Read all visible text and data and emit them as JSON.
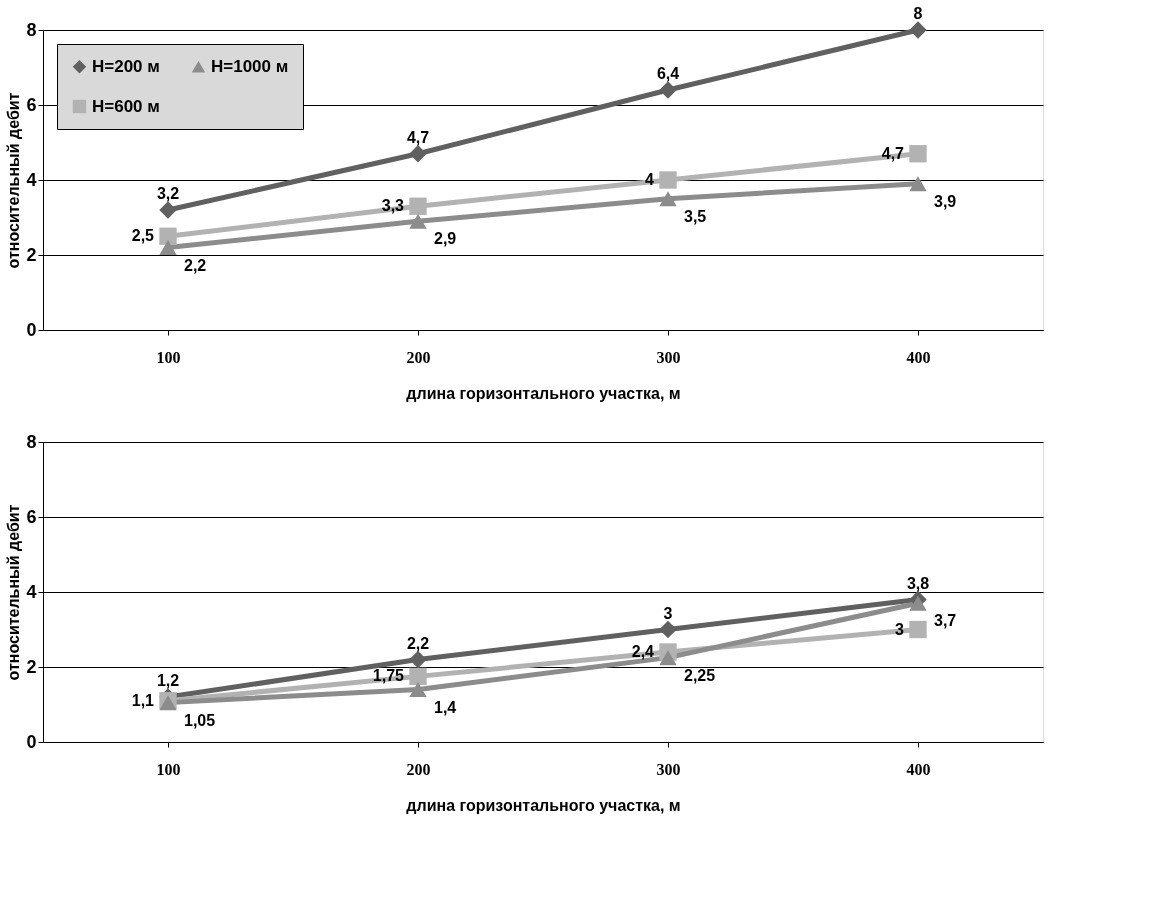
{
  "chart_data": [
    {
      "type": "line",
      "xlabel": "длина горизонтального участка, м",
      "ylabel": "относительный дебит",
      "categories": [
        "100",
        "200",
        "300",
        "400"
      ],
      "ylim": [
        0,
        8
      ],
      "yticks": [
        0,
        2,
        4,
        6,
        8
      ],
      "grid": "y",
      "legend": "top left",
      "series": [
        {
          "name": "H=200 м",
          "color": "#606060",
          "marker": "diamond",
          "values": [
            3.2,
            4.7,
            6.4,
            8
          ],
          "value_labels": [
            "3,2",
            "4,7",
            "6,4",
            "8"
          ]
        },
        {
          "name": "H=600 м",
          "color": "#b2b2b2",
          "marker": "square",
          "values": [
            2.5,
            3.3,
            4,
            4.7
          ],
          "value_labels": [
            "2,5",
            "3,3",
            "4",
            "4,7"
          ]
        },
        {
          "name": "H=1000 м",
          "color": "#8c8c8c",
          "marker": "triangle",
          "values": [
            2.2,
            2.9,
            3.5,
            3.9
          ],
          "value_labels": [
            "2,2",
            "2,9",
            "3,5",
            "3,9"
          ]
        }
      ]
    },
    {
      "type": "line",
      "xlabel": "длина горизонтального участка, м",
      "ylabel": "относительный дебит",
      "categories": [
        "100",
        "200",
        "300",
        "400"
      ],
      "ylim": [
        0,
        8
      ],
      "yticks": [
        0,
        2,
        4,
        6,
        8
      ],
      "grid": "y",
      "legend": "top left",
      "series": [
        {
          "name": "H=200 м",
          "color": "#606060",
          "marker": "diamond",
          "values": [
            1.2,
            2.2,
            3,
            3.8
          ],
          "value_labels": [
            "1,2",
            "2,2",
            "3",
            "3,8"
          ]
        },
        {
          "name": "H=600 м",
          "color": "#b2b2b2",
          "marker": "square",
          "values": [
            1.1,
            1.75,
            2.4,
            3
          ],
          "value_labels": [
            "1,1",
            "1,75",
            "2,4",
            "3"
          ]
        },
        {
          "name": "H=1000 м",
          "color": "#8c8c8c",
          "marker": "triangle",
          "values": [
            1.05,
            1.4,
            2.25,
            3.7
          ],
          "value_labels": [
            "1,05",
            "1,4",
            "2,25",
            "3,7"
          ]
        }
      ]
    }
  ]
}
